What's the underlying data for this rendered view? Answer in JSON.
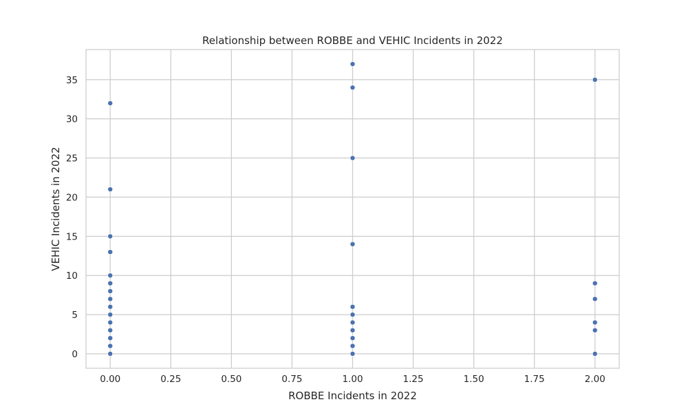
{
  "chart_data": {
    "type": "scatter",
    "title": "Relationship between ROBBE and VEHIC Incidents in 2022",
    "xlabel": "ROBBE Incidents in 2022",
    "ylabel": "VEHIC Incidents in 2022",
    "xlim": [
      -0.1,
      2.1
    ],
    "ylim": [
      -1.85,
      38.85
    ],
    "x_ticks": [
      0,
      0.25,
      0.5,
      0.75,
      1,
      1.25,
      1.5,
      1.75,
      2
    ],
    "x_tick_labels": [
      "0.00",
      "0.25",
      "0.50",
      "0.75",
      "1.00",
      "1.25",
      "1.50",
      "1.75",
      "2.00"
    ],
    "y_ticks": [
      0,
      5,
      10,
      15,
      20,
      25,
      30,
      35
    ],
    "y_tick_labels": [
      "0",
      "5",
      "10",
      "15",
      "20",
      "25",
      "30",
      "35"
    ],
    "grid": true,
    "legend": "none",
    "marker_color": "#4c72b0",
    "points": [
      {
        "x": 0,
        "y": 0
      },
      {
        "x": 0,
        "y": 1
      },
      {
        "x": 0,
        "y": 2
      },
      {
        "x": 0,
        "y": 3
      },
      {
        "x": 0,
        "y": 4
      },
      {
        "x": 0,
        "y": 5
      },
      {
        "x": 0,
        "y": 6
      },
      {
        "x": 0,
        "y": 7
      },
      {
        "x": 0,
        "y": 8
      },
      {
        "x": 0,
        "y": 9
      },
      {
        "x": 0,
        "y": 10
      },
      {
        "x": 0,
        "y": 13
      },
      {
        "x": 0,
        "y": 15
      },
      {
        "x": 0,
        "y": 21
      },
      {
        "x": 0,
        "y": 32
      },
      {
        "x": 1,
        "y": 0
      },
      {
        "x": 1,
        "y": 1
      },
      {
        "x": 1,
        "y": 2
      },
      {
        "x": 1,
        "y": 3
      },
      {
        "x": 1,
        "y": 4
      },
      {
        "x": 1,
        "y": 5
      },
      {
        "x": 1,
        "y": 6
      },
      {
        "x": 1,
        "y": 14
      },
      {
        "x": 1,
        "y": 25
      },
      {
        "x": 1,
        "y": 34
      },
      {
        "x": 1,
        "y": 37
      },
      {
        "x": 2,
        "y": 0
      },
      {
        "x": 2,
        "y": 3
      },
      {
        "x": 2,
        "y": 4
      },
      {
        "x": 2,
        "y": 7
      },
      {
        "x": 2,
        "y": 9
      },
      {
        "x": 2,
        "y": 35
      }
    ]
  }
}
